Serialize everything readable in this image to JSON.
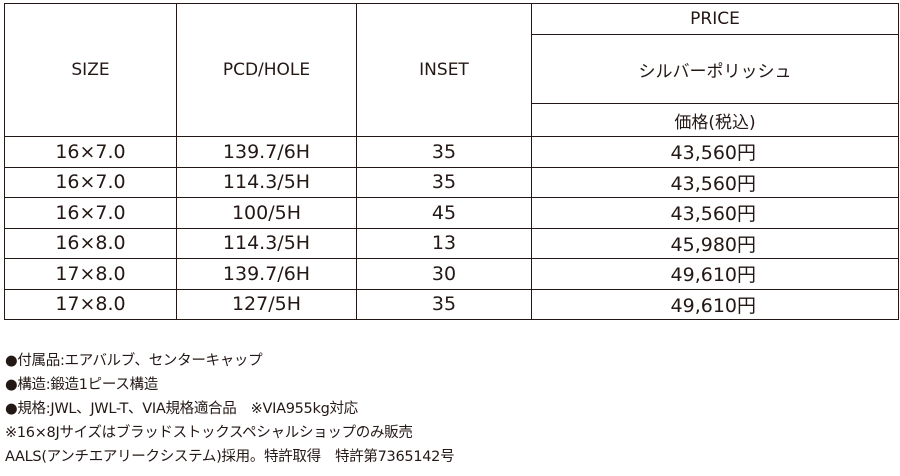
{
  "table": {
    "headers": {
      "size": "SIZE",
      "pcd_hole": "PCD/HOLE",
      "inset": "INSET",
      "price": "PRICE",
      "finish": "シルバーポリッシュ",
      "price_tax": "価格(税込)"
    },
    "rows": [
      {
        "size": "16×7.0",
        "pcd": "139.7/6H",
        "inset": "35",
        "price": "43,560円"
      },
      {
        "size": "16×7.0",
        "pcd": "114.3/5H",
        "inset": "35",
        "price": "43,560円"
      },
      {
        "size": "16×7.0",
        "pcd": "100/5H",
        "inset": "45",
        "price": "43,560円"
      },
      {
        "size": "16×8.0",
        "pcd": "114.3/5H",
        "inset": "13",
        "price": "45,980円"
      },
      {
        "size": "17×8.0",
        "pcd": "139.7/6H",
        "inset": "30",
        "price": "49,610円"
      },
      {
        "size": "17×8.0",
        "pcd": "127/5H",
        "inset": "35",
        "price": "49,610円"
      }
    ]
  },
  "notes": [
    "●付属品:エアバルブ、センターキャップ",
    "●構造:鍛造1ピース構造",
    "●規格:JWL、JWL-T、VIA規格適合品　※VIA955kg対応",
    "※16×8Jサイズはブラッドストックスペシャルショップのみ販売",
    "AALS(アンチエアリークシステム)採用。特許取得　特許第7365142号"
  ]
}
